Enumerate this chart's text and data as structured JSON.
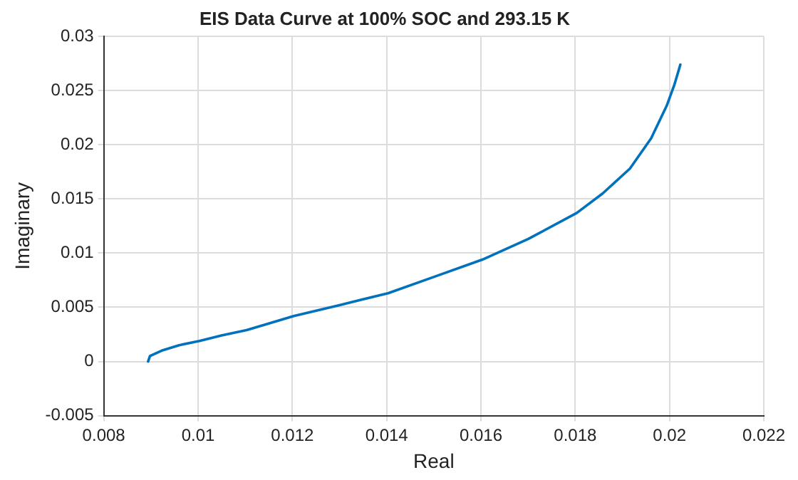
{
  "chart_data": {
    "type": "line",
    "title": "EIS Data Curve at 100% SOC and 293.15 K",
    "xlabel": "Real",
    "ylabel": "Imaginary",
    "series": [
      {
        "color": "#0072bd",
        "x": [
          0.00894,
          0.00898,
          0.00923,
          0.0096,
          0.01003,
          0.0105,
          0.01103,
          0.0115,
          0.01203,
          0.013,
          0.01403,
          0.015,
          0.01603,
          0.017,
          0.01803,
          0.01858,
          0.01916,
          0.01961,
          0.01994,
          0.0201,
          0.02023
        ],
        "values": [
          0,
          0.0005,
          0.001,
          0.0015,
          0.0019,
          0.0024,
          0.0029,
          0.0035,
          0.0042,
          0.0052,
          0.0063,
          0.0078,
          0.0094,
          0.0113,
          0.0137,
          0.0155,
          0.0178,
          0.0206,
          0.0236,
          0.0255,
          0.0274
        ]
      }
    ],
    "xlim": [
      0.008,
      0.022
    ],
    "xticks": [
      0.008,
      0.01,
      0.012,
      0.014,
      0.016,
      0.018,
      0.02,
      0.022
    ],
    "ylim": [
      -0.005,
      0.03
    ],
    "yticks": [
      -0.005,
      0,
      0.005,
      0.01,
      0.015,
      0.02,
      0.025,
      0.03
    ],
    "grid": true,
    "legend": false,
    "marker": "none",
    "line_style": "solid"
  }
}
